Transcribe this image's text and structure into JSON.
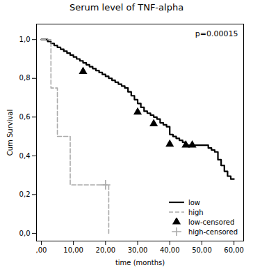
{
  "chart_data": {
    "type": "line",
    "title": "Serum level of TNF-alpha",
    "x_label": "time (months)",
    "y_label": "Cum Survival",
    "annotation": "p=0.00015",
    "xlim": [
      -1.5,
      63
    ],
    "ylim": [
      -0.04,
      1.08
    ],
    "xticks": [
      {
        "value": 0,
        "label": ",00"
      },
      {
        "value": 10,
        "label": "10,00"
      },
      {
        "value": 20,
        "label": "20,00"
      },
      {
        "value": 30,
        "label": "30,00"
      },
      {
        "value": 40,
        "label": "40,00"
      },
      {
        "value": 50,
        "label": "50,00"
      },
      {
        "value": 60,
        "label": "60,00"
      }
    ],
    "yticks": [
      {
        "value": 0.0,
        "label": "0,0"
      },
      {
        "value": 0.2,
        "label": "0,2"
      },
      {
        "value": 0.4,
        "label": "0,4"
      },
      {
        "value": 0.6,
        "label": "0,6"
      },
      {
        "value": 0.8,
        "label": "0,8"
      },
      {
        "value": 1.0,
        "label": "1,0"
      }
    ],
    "grid": false,
    "legend": "lower right",
    "series": [
      {
        "name": "low",
        "type": "step",
        "color": "#000000",
        "line_style": "solid",
        "x": [
          0,
          1,
          2,
          3,
          4,
          5,
          6,
          7,
          8,
          9,
          10,
          11,
          12,
          13,
          14,
          15,
          16,
          17,
          18,
          19,
          20,
          21,
          22,
          23,
          24,
          25,
          26,
          27,
          28,
          29,
          30,
          31,
          32,
          33,
          34,
          35,
          36,
          37,
          38,
          39,
          40,
          41,
          42,
          43,
          44,
          45,
          46,
          47,
          48,
          49,
          50,
          51,
          52,
          53,
          54,
          55,
          56,
          57,
          58,
          59,
          60
        ],
        "values": [
          1.0,
          1.0,
          0.99,
          0.98,
          0.97,
          0.96,
          0.95,
          0.94,
          0.93,
          0.92,
          0.91,
          0.9,
          0.89,
          0.88,
          0.87,
          0.86,
          0.85,
          0.84,
          0.83,
          0.82,
          0.81,
          0.8,
          0.79,
          0.78,
          0.77,
          0.76,
          0.75,
          0.73,
          0.71,
          0.69,
          0.67,
          0.65,
          0.63,
          0.62,
          0.61,
          0.6,
          0.59,
          0.57,
          0.56,
          0.55,
          0.51,
          0.5,
          0.49,
          0.48,
          0.47,
          0.455,
          0.455,
          0.455,
          0.455,
          0.455,
          0.455,
          0.455,
          0.44,
          0.43,
          0.42,
          0.38,
          0.35,
          0.32,
          0.295,
          0.28,
          0.28
        ]
      },
      {
        "name": "high",
        "type": "step",
        "color": "#aaaaaa",
        "line_style": "dashed",
        "x": [
          0,
          3,
          5,
          9,
          12,
          20,
          21
        ],
        "values": [
          1.0,
          0.75,
          0.5,
          0.25,
          0.25,
          0.25,
          0.0
        ]
      },
      {
        "name": "low-censored",
        "type": "scatter",
        "color": "#000000",
        "marker": "triangle",
        "x": [
          13,
          30,
          35,
          40,
          45,
          47
        ],
        "values": [
          0.835,
          0.625,
          0.565,
          0.46,
          0.455,
          0.455
        ]
      },
      {
        "name": "high-censored",
        "type": "scatter",
        "color": "#aaaaaa",
        "marker": "plus",
        "x": [
          20
        ],
        "values": [
          0.25
        ]
      }
    ]
  }
}
